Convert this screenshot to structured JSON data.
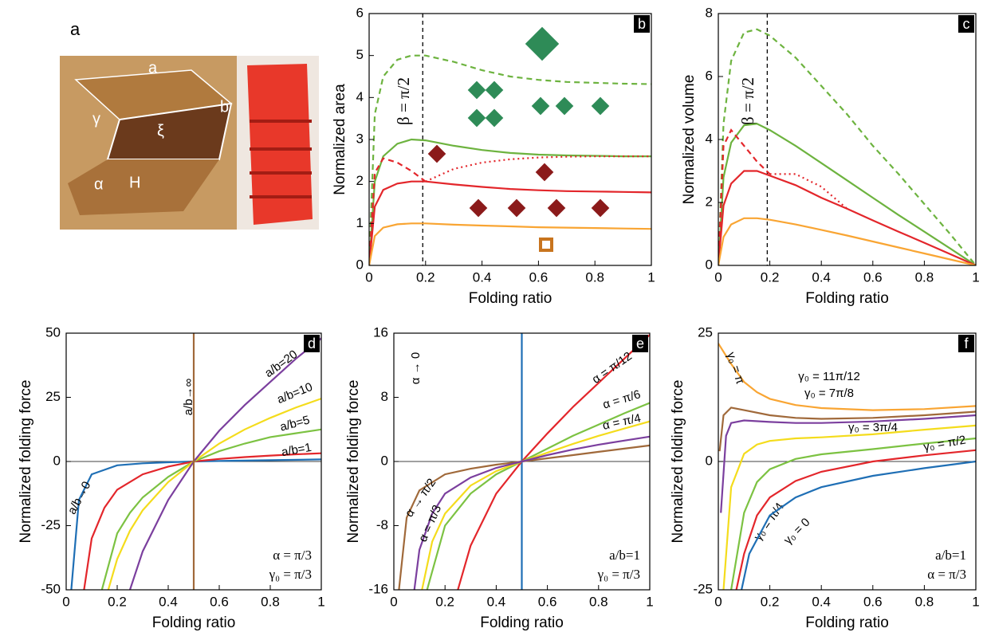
{
  "panel_a": {
    "panel_label": "a",
    "labels": [
      "a",
      "b",
      "γ",
      "ξ",
      "α",
      "H"
    ]
  },
  "chart_data": [
    {
      "type": "line",
      "panel_label": "b",
      "xlabel": "Folding ratio",
      "ylabel": "Normalized area",
      "xlim": [
        0,
        1
      ],
      "ylim": [
        0,
        6
      ],
      "xticks": [
        0,
        0.2,
        0.4,
        0.6,
        0.8,
        1
      ],
      "yticks": [
        0,
        1,
        2,
        3,
        4,
        5,
        6
      ],
      "vline": 0.19,
      "vline_label": "β = π/2",
      "x": [
        0,
        0.02,
        0.05,
        0.1,
        0.15,
        0.2,
        0.3,
        0.4,
        0.5,
        0.6,
        0.7,
        0.8,
        0.9,
        1
      ],
      "series": [
        {
          "color": "#6db33f",
          "style": "dashed",
          "values": [
            0,
            3.6,
            4.5,
            4.9,
            5.0,
            5.0,
            4.85,
            4.65,
            4.5,
            4.42,
            4.37,
            4.35,
            4.33,
            4.32
          ]
        },
        {
          "color": "#6db33f",
          "style": "solid",
          "values": [
            0,
            2.0,
            2.6,
            2.9,
            3.0,
            2.98,
            2.85,
            2.75,
            2.68,
            2.64,
            2.62,
            2.61,
            2.6,
            2.6
          ]
        },
        {
          "color": "#e3262b",
          "style": "dashed",
          "values": [
            0,
            2.2,
            2.55,
            2.45,
            2.25,
            2.0,
            null,
            null,
            null,
            null,
            null,
            null,
            null,
            null
          ]
        },
        {
          "color": "#e3262b",
          "style": "dotted",
          "values": [
            null,
            null,
            null,
            null,
            null,
            2.0,
            2.3,
            2.45,
            2.53,
            2.57,
            2.59,
            2.6,
            2.6,
            2.6
          ]
        },
        {
          "color": "#e3262b",
          "style": "solid",
          "values": [
            0,
            1.4,
            1.8,
            1.95,
            2.0,
            2.0,
            1.93,
            1.87,
            1.82,
            1.79,
            1.77,
            1.76,
            1.75,
            1.74
          ]
        },
        {
          "color": "#f9a533",
          "style": "solid",
          "values": [
            0,
            0.7,
            0.9,
            0.98,
            1.0,
            1.0,
            0.97,
            0.95,
            0.93,
            0.91,
            0.9,
            0.89,
            0.88,
            0.87
          ]
        }
      ]
    },
    {
      "type": "line",
      "panel_label": "c",
      "xlabel": "Folding ratio",
      "ylabel": "Normalized volume",
      "xlim": [
        0,
        1
      ],
      "ylim": [
        0,
        8
      ],
      "xticks": [
        0,
        0.2,
        0.4,
        0.6,
        0.8,
        1
      ],
      "yticks": [
        0,
        2,
        4,
        6,
        8
      ],
      "vline": 0.19,
      "vline_label": "β = π/2",
      "x": [
        0,
        0.02,
        0.05,
        0.1,
        0.15,
        0.2,
        0.3,
        0.4,
        0.5,
        0.6,
        0.7,
        0.8,
        0.9,
        1
      ],
      "series": [
        {
          "color": "#6db33f",
          "style": "dashed",
          "values": [
            0,
            4.5,
            6.5,
            7.4,
            7.5,
            7.3,
            6.6,
            5.7,
            4.8,
            3.8,
            2.9,
            1.95,
            1.0,
            0
          ]
        },
        {
          "color": "#6db33f",
          "style": "solid",
          "values": [
            0,
            2.8,
            3.9,
            4.45,
            4.5,
            4.3,
            3.8,
            3.25,
            2.7,
            2.15,
            1.6,
            1.07,
            0.54,
            0
          ]
        },
        {
          "color": "#e3262b",
          "style": "dashed",
          "values": [
            0,
            3.8,
            4.3,
            3.8,
            3.3,
            2.9,
            null,
            null,
            null,
            null,
            null,
            null,
            null,
            null
          ]
        },
        {
          "color": "#e3262b",
          "style": "dotted",
          "values": [
            null,
            null,
            null,
            null,
            null,
            2.9,
            2.9,
            2.5,
            1.8,
            null,
            null,
            null,
            null,
            null
          ]
        },
        {
          "color": "#e3262b",
          "style": "solid",
          "values": [
            0,
            1.9,
            2.6,
            3.0,
            3.0,
            2.85,
            2.55,
            2.15,
            1.8,
            1.43,
            1.07,
            0.72,
            0.36,
            0
          ]
        },
        {
          "color": "#f9a533",
          "style": "solid",
          "values": [
            0,
            0.9,
            1.3,
            1.5,
            1.5,
            1.45,
            1.3,
            1.13,
            0.95,
            0.76,
            0.57,
            0.38,
            0.19,
            0
          ]
        }
      ]
    },
    {
      "type": "line",
      "panel_label": "d",
      "xlabel": "Folding ratio",
      "ylabel": "Normalized folding force",
      "xlim": [
        0,
        1
      ],
      "ylim": [
        -50,
        50
      ],
      "xticks": [
        0,
        0.2,
        0.4,
        0.6,
        0.8,
        1
      ],
      "yticks": [
        -50,
        -25,
        0,
        25,
        50
      ],
      "zero_line": true,
      "notes": [
        "α = π/3",
        "γ₀ = π/3"
      ],
      "series": [
        {
          "name": "a/b→0",
          "color": "#1f6fb5",
          "x": [
            0.02,
            0.05,
            0.1,
            0.2,
            0.3,
            0.4,
            0.5,
            0.6,
            0.8,
            1
          ],
          "values": [
            -50,
            -15,
            -5,
            -1.5,
            -0.7,
            -0.3,
            0,
            0.2,
            0.5,
            0.8
          ]
        },
        {
          "name": "a/b=1",
          "color": "#e3262b",
          "x": [
            0.07,
            0.1,
            0.15,
            0.2,
            0.3,
            0.4,
            0.5,
            0.6,
            0.7,
            0.8,
            0.9,
            1
          ],
          "values": [
            -50,
            -30,
            -18,
            -11,
            -5,
            -2,
            0,
            1,
            1.7,
            2.3,
            2.8,
            3.2
          ]
        },
        {
          "name": "a/b=5",
          "color": "#7cc242",
          "x": [
            0.14,
            0.2,
            0.25,
            0.3,
            0.4,
            0.5,
            0.6,
            0.7,
            0.8,
            0.9,
            1
          ],
          "values": [
            -50,
            -28,
            -20,
            -14,
            -6,
            0,
            4,
            7,
            9.5,
            11,
            12.5
          ]
        },
        {
          "name": "a/b=10",
          "color": "#f4dc1c",
          "x": [
            0.165,
            0.2,
            0.25,
            0.3,
            0.4,
            0.5,
            0.6,
            0.7,
            0.8,
            0.9,
            1
          ],
          "values": [
            -50,
            -38,
            -27,
            -19,
            -8,
            0,
            7,
            12.5,
            17,
            21,
            24.5
          ]
        },
        {
          "name": "a/b=20",
          "color": "#7b3f9e",
          "x": [
            0.25,
            0.3,
            0.4,
            0.5,
            0.6,
            0.7,
            0.8,
            0.9,
            1
          ],
          "values": [
            -50,
            -35,
            -15,
            0,
            12,
            22,
            31,
            40,
            48
          ]
        },
        {
          "name": "a/b→∞",
          "color": "#a0693a",
          "x": [
            0.5,
            0.5
          ],
          "values": [
            -50,
            50
          ]
        }
      ]
    },
    {
      "type": "line",
      "panel_label": "e",
      "xlabel": "Folding ratio",
      "ylabel": "Normalized folding force",
      "xlim": [
        0,
        1
      ],
      "ylim": [
        -16,
        16
      ],
      "xticks": [
        0,
        0.2,
        0.4,
        0.6,
        0.8,
        1
      ],
      "yticks": [
        -16,
        -8,
        0,
        8,
        16
      ],
      "zero_line": true,
      "notes": [
        "a/b=1",
        "γ₀ = π/3"
      ],
      "series": [
        {
          "name": "α → 0",
          "color": "#1f6fb5",
          "x": [
            0.5,
            0.5
          ],
          "values": [
            -16,
            16
          ]
        },
        {
          "name": "α = π/12",
          "color": "#e3262b",
          "x": [
            0.25,
            0.3,
            0.4,
            0.5,
            0.6,
            0.7,
            0.8,
            0.9,
            1
          ],
          "values": [
            -16,
            -10.5,
            -4,
            0,
            3.5,
            6.8,
            9.8,
            12.8,
            15.8
          ]
        },
        {
          "name": "α = π/6",
          "color": "#7cc242",
          "x": [
            0.13,
            0.2,
            0.3,
            0.4,
            0.5,
            0.6,
            0.7,
            0.8,
            0.9,
            1
          ],
          "values": [
            -16,
            -8,
            -4,
            -1.6,
            0,
            1.6,
            3.2,
            4.6,
            6,
            7.3
          ]
        },
        {
          "name": "α = π/4",
          "color": "#f4dc1c",
          "x": [
            0.11,
            0.15,
            0.2,
            0.3,
            0.4,
            0.5,
            0.6,
            0.7,
            0.8,
            0.9,
            1
          ],
          "values": [
            -16,
            -10,
            -6.5,
            -3,
            -1.2,
            0,
            1.1,
            2.2,
            3.2,
            4.1,
            5
          ]
        },
        {
          "name": "α → π/2",
          "color": "#a0693a",
          "x": [
            0.02,
            0.05,
            0.1,
            0.2,
            0.3,
            0.4,
            0.5,
            0.6,
            0.7,
            0.8,
            0.9,
            1
          ],
          "values": [
            -16,
            -7,
            -3.6,
            -1.6,
            -0.9,
            -0.4,
            0,
            0.4,
            0.8,
            1.2,
            1.6,
            2
          ]
        },
        {
          "name": "α = π/3",
          "color": "#7b3f9e",
          "x": [
            0.08,
            0.1,
            0.15,
            0.2,
            0.3,
            0.4,
            0.5,
            0.6,
            0.7,
            0.8,
            0.9,
            1
          ],
          "values": [
            -16,
            -11,
            -6.5,
            -4,
            -2,
            -0.8,
            0,
            0.8,
            1.5,
            2.1,
            2.6,
            3.1
          ]
        }
      ]
    },
    {
      "type": "line",
      "panel_label": "f",
      "xlabel": "Folding ratio",
      "ylabel": "Normalized folding force",
      "xlim": [
        0,
        1
      ],
      "ylim": [
        -25,
        25
      ],
      "xticks": [
        0,
        0.2,
        0.4,
        0.6,
        0.8,
        1
      ],
      "yticks": [
        -25,
        0,
        25
      ],
      "zero_line": true,
      "notes": [
        "a/b=1",
        "α = π/3"
      ],
      "series": [
        {
          "name": "γ₀ = π",
          "color": "#f9a533",
          "x": [
            0,
            0.05,
            0.1,
            0.15,
            0.2,
            0.3,
            0.4,
            0.6,
            0.8,
            1
          ],
          "values": [
            23,
            19,
            15.5,
            13.5,
            12.2,
            11,
            10.4,
            10,
            10.2,
            10.8
          ]
        },
        {
          "name": "γ₀ = 11π/12",
          "color": "#a0693a",
          "x": [
            0.005,
            0.02,
            0.05,
            0.1,
            0.2,
            0.3,
            0.4,
            0.6,
            0.8,
            1
          ],
          "values": [
            2,
            9,
            10.5,
            10,
            9,
            8.5,
            8.3,
            8.5,
            9,
            9.7
          ]
        },
        {
          "name": "γ₀ = 7π/8",
          "color": "#7b3f9e",
          "x": [
            0.01,
            0.03,
            0.05,
            0.1,
            0.2,
            0.3,
            0.4,
            0.6,
            0.8,
            1
          ],
          "values": [
            -10,
            5,
            7.5,
            8,
            7.7,
            7.5,
            7.5,
            7.8,
            8.3,
            9
          ]
        },
        {
          "name": "γ₀ = 3π/4",
          "color": "#f4dc1c",
          "x": [
            0.02,
            0.05,
            0.1,
            0.15,
            0.2,
            0.3,
            0.4,
            0.6,
            0.8,
            1
          ],
          "values": [
            -25,
            -5,
            1.5,
            3.3,
            4,
            4.5,
            4.7,
            5.3,
            6.2,
            7
          ]
        },
        {
          "name": "γ₀ = π/2",
          "color": "#7cc242",
          "x": [
            0.05,
            0.1,
            0.15,
            0.2,
            0.3,
            0.4,
            0.6,
            0.8,
            1
          ],
          "values": [
            -25,
            -10,
            -4,
            -1.5,
            0.5,
            1.4,
            2.4,
            3.5,
            4.5
          ]
        },
        {
          "name": "γ₀ = π/4",
          "color": "#e3262b",
          "x": [
            0.07,
            0.1,
            0.15,
            0.2,
            0.3,
            0.4,
            0.6,
            0.8,
            1
          ],
          "values": [
            -25,
            -18,
            -10.5,
            -7,
            -3.8,
            -2,
            0,
            1.2,
            2.2
          ]
        },
        {
          "name": "γ₀ = 0",
          "color": "#1f6fb5",
          "x": [
            0.09,
            0.12,
            0.2,
            0.3,
            0.4,
            0.6,
            0.8,
            1
          ],
          "values": [
            -25,
            -18,
            -10.5,
            -7,
            -5,
            -2.8,
            -1.3,
            0
          ]
        }
      ]
    }
  ]
}
